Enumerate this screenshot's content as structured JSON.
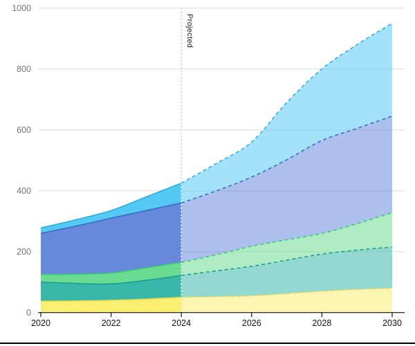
{
  "chart_data": {
    "type": "area",
    "stacked": true,
    "title": "",
    "xlabel": "",
    "ylabel": "",
    "x": [
      2020,
      2021,
      2022,
      2023,
      2024,
      2025,
      2026,
      2027,
      2028,
      2029,
      2030
    ],
    "series": [
      {
        "id": "series-yellow",
        "color": "#FBEE66",
        "stroke": "#EDDC4E",
        "values": [
          37,
          38,
          40,
          44,
          50,
          52,
          55,
          62,
          70,
          76,
          80
        ]
      },
      {
        "id": "series-teal",
        "color": "#2AB3A3",
        "stroke": "#1B9C8F",
        "values": [
          63,
          58,
          54,
          62,
          72,
          85,
          97,
          110,
          122,
          129,
          135
        ]
      },
      {
        "id": "series-green",
        "color": "#5FD98A",
        "stroke": "#3CC877",
        "values": [
          25,
          30,
          36,
          41,
          43,
          53,
          66,
          67,
          68,
          87,
          113
        ]
      },
      {
        "id": "series-blue",
        "color": "#5B80D9",
        "stroke": "#3D68C8",
        "values": [
          135,
          158,
          180,
          188,
          195,
          210,
          227,
          263,
          305,
          313,
          317
        ]
      },
      {
        "id": "series-cyan",
        "color": "#47C5F2",
        "stroke": "#27AEE8",
        "values": [
          18,
          21,
          25,
          45,
          65,
          90,
          115,
          188,
          235,
          275,
          305
        ]
      }
    ],
    "xlim": [
      2020,
      2030
    ],
    "ylim": [
      0,
      1000
    ],
    "xticks": [
      2020,
      2022,
      2024,
      2026,
      2028,
      2030
    ],
    "yticks": [
      0,
      200,
      400,
      600,
      800,
      1000
    ],
    "grid": true,
    "legend": false,
    "projected_from": 2024,
    "annotation": "Projected"
  },
  "colors": {
    "background": "#FFFFFF",
    "grid": "#DCDCDC",
    "axis": "#111111",
    "x_tick_label": "#111111",
    "y_tick_label": "#757575",
    "annotation_text": "#1A1A1A",
    "projected_line_upper": "#C8C8C8",
    "projected_line_over_areas": "#FFFFFF",
    "bottom_divider": "#000000"
  }
}
